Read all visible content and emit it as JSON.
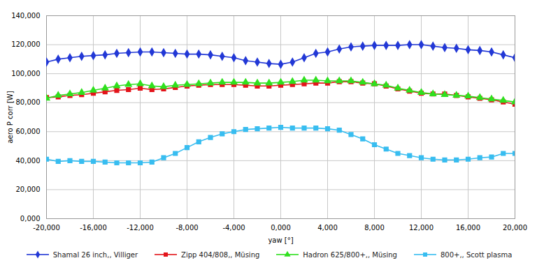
{
  "chart_data": {
    "type": "line",
    "x_label": "yaw [°]",
    "y_label": "aero P corr [W]",
    "grid": true,
    "legend": "bottom",
    "xlim": [
      -20,
      20
    ],
    "ylim": [
      0,
      140
    ],
    "xticks": [
      {
        "value": -20,
        "label": "-20,000"
      },
      {
        "value": -16,
        "label": "-16,000"
      },
      {
        "value": -12,
        "label": "-12,000"
      },
      {
        "value": -8,
        "label": "-8,000"
      },
      {
        "value": -4,
        "label": "-4,000"
      },
      {
        "value": 0,
        "label": "0,000"
      },
      {
        "value": 4,
        "label": "4,000"
      },
      {
        "value": 8,
        "label": "8,000"
      },
      {
        "value": 12,
        "label": "12,000"
      },
      {
        "value": 16,
        "label": "16,000"
      },
      {
        "value": 20,
        "label": "20,000"
      }
    ],
    "yticks": [
      {
        "value": 0,
        "label": "0,000"
      },
      {
        "value": 20,
        "label": "20,000"
      },
      {
        "value": 40,
        "label": "40,000"
      },
      {
        "value": 60,
        "label": "60,000"
      },
      {
        "value": 80,
        "label": "80,000"
      },
      {
        "value": 100,
        "label": "100,000"
      },
      {
        "value": 120,
        "label": "120,000"
      },
      {
        "value": 140,
        "label": "140,000"
      }
    ],
    "x": [
      -20,
      -19,
      -18,
      -17,
      -16,
      -15,
      -14,
      -13,
      -12,
      -11,
      -10,
      -9,
      -8,
      -7,
      -6,
      -5,
      -4,
      -3,
      -2,
      -1,
      0,
      1,
      2,
      3,
      4,
      5,
      6,
      7,
      8,
      9,
      10,
      11,
      12,
      13,
      14,
      15,
      16,
      17,
      18,
      19,
      20
    ],
    "series": [
      {
        "name": "Shamal 26 inch,, Villiger",
        "color": "#2238d6",
        "marker": "diamond",
        "values": [
          108,
          110,
          111,
          112,
          112.5,
          113,
          114,
          114.5,
          115,
          115,
          114.5,
          114,
          113.5,
          113.5,
          113,
          112,
          111,
          109,
          108,
          107,
          106.5,
          108,
          111,
          114,
          115,
          117,
          118.5,
          119,
          119.5,
          119.5,
          119.5,
          120,
          120,
          119,
          118,
          117.5,
          116.5,
          116,
          115,
          113,
          111
        ]
      },
      {
        "name": "Zipp 404/808,, Müsing",
        "color": "#e3141b",
        "marker": "square",
        "values": [
          83.5,
          84,
          85,
          85.5,
          86.5,
          87.5,
          88.5,
          89,
          90,
          89,
          89.5,
          90.5,
          91.5,
          92,
          92.5,
          92.5,
          92.5,
          92,
          91.5,
          91.5,
          92,
          92.5,
          93,
          93.5,
          93.5,
          94.5,
          94.5,
          93.5,
          93,
          91.5,
          89.5,
          88,
          86.5,
          86,
          86,
          85,
          84,
          83,
          82,
          80.5,
          79
        ]
      },
      {
        "name": "Hadron 625/800+,, Müsing",
        "color": "#2fe01e",
        "marker": "triangle",
        "values": [
          83,
          85,
          86,
          87,
          88.5,
          90,
          91.5,
          92.5,
          93,
          91.5,
          91,
          92,
          92.5,
          93,
          93.5,
          94,
          94,
          94,
          93.5,
          93.5,
          94,
          94.5,
          95.5,
          95.5,
          95,
          95,
          95,
          94,
          93,
          92,
          90,
          88.5,
          87,
          86,
          85.5,
          85,
          84.5,
          83.5,
          82.5,
          81.5,
          80.5
        ]
      },
      {
        "name": "800+,, Scott plasma",
        "color": "#38bdf0",
        "marker": "square",
        "values": [
          41,
          39.5,
          40,
          39.5,
          39.5,
          39,
          38.5,
          38.5,
          38.5,
          39,
          42,
          45,
          49,
          53,
          56,
          58.5,
          60,
          61.5,
          62,
          62.5,
          63,
          62.5,
          62.5,
          62.5,
          62,
          61,
          58,
          55,
          51,
          48,
          45,
          43.5,
          42,
          41,
          40.5,
          40.5,
          41,
          42,
          42.5,
          45,
          45
        ]
      }
    ]
  }
}
